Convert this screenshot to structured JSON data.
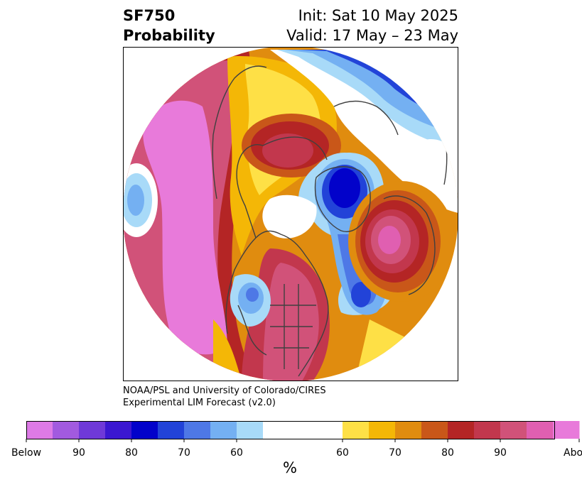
{
  "header": {
    "variable": "SF750",
    "product": "Probability",
    "init": "Init: Sat 10 May 2025",
    "valid": "Valid: 17 May – 23 May"
  },
  "credit": {
    "line1": "NOAA/PSL and University of Colorado/CIRES",
    "line2": "Experimental LIM Forecast (v2.0)"
  },
  "map": {
    "projection": "north polar stereographic",
    "field": "SF750 probability"
  },
  "colorbar": {
    "unit": "%",
    "ticks": [
      "Below",
      "90",
      "80",
      "70",
      "60",
      "60",
      "70",
      "80",
      "90",
      "Above"
    ],
    "below_colors": [
      "#dd7ae6",
      "#a25adf",
      "#6f39d8",
      "#3b17d1",
      "#0202ca",
      "#2243d8",
      "#4e78e6",
      "#74b0f2",
      "#a8daf8"
    ],
    "neutral_color": "#ffffff",
    "above_colors": [
      "#fee046",
      "#f4b706",
      "#e08c0f",
      "#c95719",
      "#b42525",
      "#c2374d",
      "#d15279",
      "#e05fb1",
      "#e87ada"
    ]
  }
}
